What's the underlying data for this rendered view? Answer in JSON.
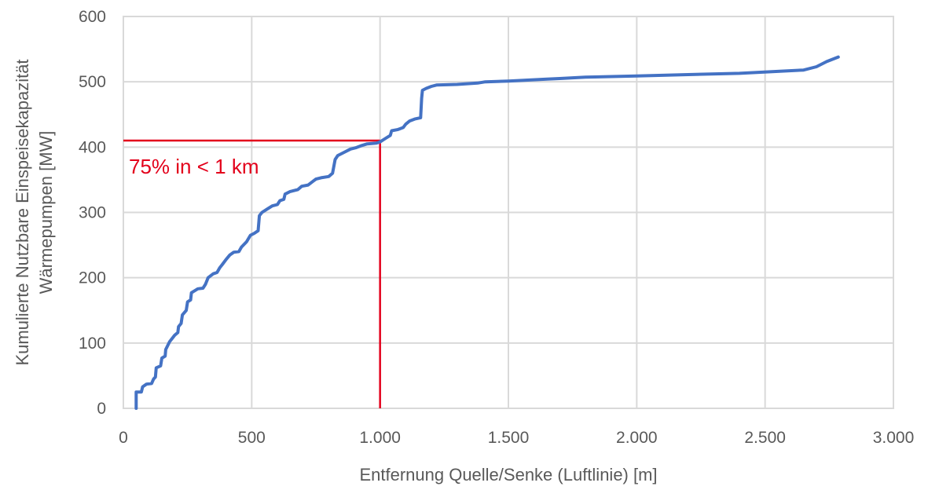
{
  "chart_data": {
    "type": "line",
    "title": "",
    "xlabel": "Entfernung Quelle/Senke (Luftlinie) [m]",
    "ylabel_line1": "Kumulierte Nutzbare Einspeisekapazität",
    "ylabel_line2": "Wärmepumpen [MW]",
    "xlim": [
      0,
      3000
    ],
    "ylim": [
      0,
      600
    ],
    "grid": true,
    "legend": "none",
    "x_ticks": [
      0,
      500,
      1000,
      1500,
      2000,
      2500,
      3000
    ],
    "x_tick_labels": [
      "0",
      "500",
      "1.000",
      "1.500",
      "2.000",
      "2.500",
      "3.000"
    ],
    "y_ticks": [
      0,
      100,
      200,
      300,
      400,
      500,
      600
    ],
    "y_tick_labels": [
      "0",
      "100",
      "200",
      "300",
      "400",
      "500",
      "600"
    ],
    "series": [
      {
        "color": "#4472c4",
        "points": [
          [
            50,
            0
          ],
          [
            50,
            25
          ],
          [
            70,
            25
          ],
          [
            75,
            33
          ],
          [
            90,
            37
          ],
          [
            110,
            38
          ],
          [
            118,
            45
          ],
          [
            125,
            48
          ],
          [
            128,
            62
          ],
          [
            145,
            65
          ],
          [
            150,
            77
          ],
          [
            163,
            80
          ],
          [
            165,
            90
          ],
          [
            180,
            102
          ],
          [
            190,
            107
          ],
          [
            200,
            112
          ],
          [
            212,
            116
          ],
          [
            215,
            125
          ],
          [
            225,
            130
          ],
          [
            230,
            143
          ],
          [
            245,
            150
          ],
          [
            250,
            163
          ],
          [
            262,
            166
          ],
          [
            265,
            177
          ],
          [
            290,
            183
          ],
          [
            310,
            184
          ],
          [
            320,
            190
          ],
          [
            330,
            200
          ],
          [
            350,
            206
          ],
          [
            365,
            208
          ],
          [
            375,
            215
          ],
          [
            385,
            220
          ],
          [
            400,
            228
          ],
          [
            415,
            235
          ],
          [
            430,
            239
          ],
          [
            450,
            240
          ],
          [
            460,
            247
          ],
          [
            480,
            255
          ],
          [
            495,
            265
          ],
          [
            510,
            268
          ],
          [
            525,
            272
          ],
          [
            530,
            295
          ],
          [
            540,
            300
          ],
          [
            560,
            305
          ],
          [
            580,
            310
          ],
          [
            600,
            312
          ],
          [
            610,
            318
          ],
          [
            625,
            320
          ],
          [
            630,
            328
          ],
          [
            650,
            332
          ],
          [
            680,
            335
          ],
          [
            695,
            340
          ],
          [
            720,
            342
          ],
          [
            740,
            348
          ],
          [
            750,
            351
          ],
          [
            770,
            353
          ],
          [
            800,
            355
          ],
          [
            815,
            360
          ],
          [
            825,
            381
          ],
          [
            835,
            387
          ],
          [
            860,
            392
          ],
          [
            885,
            397
          ],
          [
            905,
            399
          ],
          [
            925,
            402
          ],
          [
            950,
            405
          ],
          [
            985,
            406
          ],
          [
            1000,
            408
          ],
          [
            1020,
            413
          ],
          [
            1040,
            418
          ],
          [
            1045,
            425
          ],
          [
            1070,
            427
          ],
          [
            1090,
            430
          ],
          [
            1100,
            435
          ],
          [
            1115,
            440
          ],
          [
            1135,
            443
          ],
          [
            1158,
            445
          ],
          [
            1162,
            475
          ],
          [
            1165,
            487
          ],
          [
            1180,
            490
          ],
          [
            1200,
            493
          ],
          [
            1220,
            495
          ],
          [
            1300,
            496
          ],
          [
            1380,
            498
          ],
          [
            1410,
            500
          ],
          [
            1500,
            501
          ],
          [
            1650,
            504
          ],
          [
            1700,
            505
          ],
          [
            1800,
            507
          ],
          [
            2000,
            509
          ],
          [
            2200,
            511
          ],
          [
            2400,
            513
          ],
          [
            2550,
            516
          ],
          [
            2650,
            518
          ],
          [
            2700,
            523
          ],
          [
            2740,
            531
          ],
          [
            2785,
            538
          ]
        ]
      }
    ],
    "annotation": {
      "text": "75% in < 1 km",
      "x": 1000,
      "y": 410,
      "color": "#e3001b"
    }
  }
}
